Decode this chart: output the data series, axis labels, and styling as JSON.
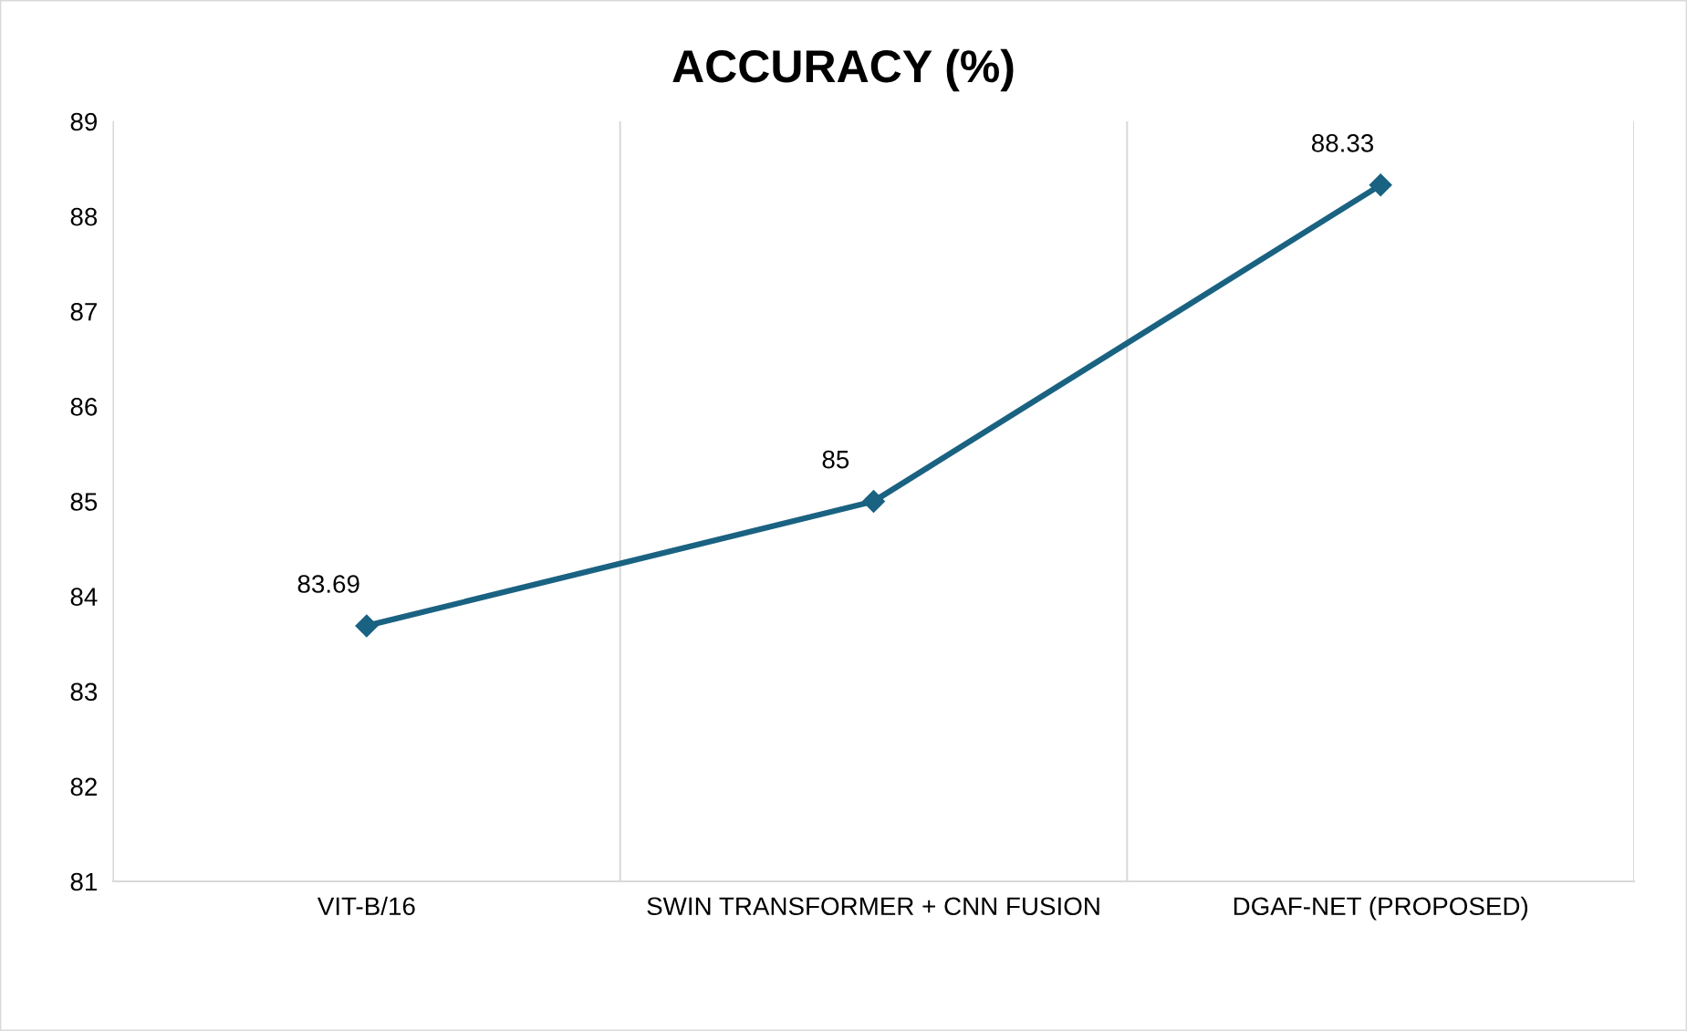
{
  "chart_data": {
    "type": "line",
    "title": "ACCURACY (%)",
    "categories": [
      "VIT-B/16",
      "SWIN TRANSFORMER + CNN FUSION",
      "DGAF-NET (PROPOSED)"
    ],
    "series": [
      {
        "color": "#1a6282",
        "values": [
          83.69,
          85,
          88.33
        ]
      }
    ],
    "ylim": [
      81,
      89
    ],
    "yticks": [
      81,
      82,
      83,
      84,
      85,
      86,
      87,
      88,
      89
    ],
    "grid": "x",
    "marker": "diamond",
    "line_style": "solid",
    "data_labels": true,
    "legend": false
  }
}
